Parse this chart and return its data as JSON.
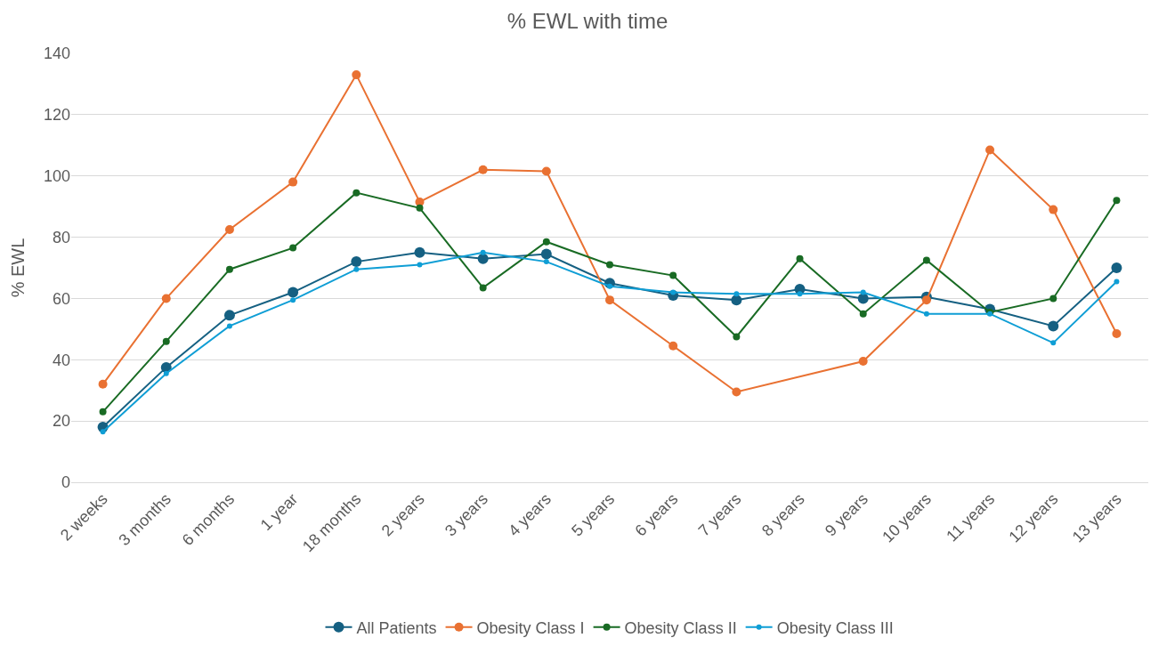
{
  "chart_data": {
    "type": "line",
    "title": "% EWL with time",
    "ylabel": "% EWL",
    "categories": [
      "2 weeks",
      "3 months",
      "6 months",
      "1 year",
      "18 months",
      "2 years",
      "3 years",
      "4 years",
      "5 years",
      "6 years",
      "7 years",
      "8 years",
      "9 years",
      "10 years",
      "11 years",
      "12 years",
      "13 years"
    ],
    "series": [
      {
        "name": "All Patients",
        "color": "#156082",
        "values": [
          18,
          37.5,
          54.5,
          62,
          72,
          75,
          73,
          74.5,
          65,
          61,
          59.5,
          63,
          60,
          60.5,
          56.5,
          51,
          70
        ]
      },
      {
        "name": "Obesity Class I",
        "color": "#e97132",
        "values": [
          32,
          60,
          82.5,
          98,
          133,
          91.5,
          102,
          101.5,
          59.5,
          44.5,
          29.5,
          null,
          39.5,
          59.5,
          108.5,
          89,
          48.5
        ]
      },
      {
        "name": "Obesity Class II",
        "color": "#196b24",
        "values": [
          23,
          46,
          69.5,
          76.5,
          94.5,
          89.5,
          63.5,
          78.5,
          71,
          67.5,
          47.5,
          73,
          55,
          72.5,
          55.5,
          60,
          92
        ]
      },
      {
        "name": "Obesity Class III",
        "color": "#0f9ed5",
        "values": [
          16.5,
          35.5,
          51,
          59.5,
          69.5,
          71,
          75,
          72,
          64,
          62,
          61.5,
          61.5,
          62,
          55,
          55,
          45.5,
          65.5
        ]
      }
    ],
    "ylim": [
      0,
      140
    ],
    "yticks": [
      0,
      20,
      40,
      60,
      80,
      100,
      120,
      140
    ],
    "grid": "y",
    "legend": "bottom",
    "marker": "circle",
    "line_style": "solid"
  }
}
